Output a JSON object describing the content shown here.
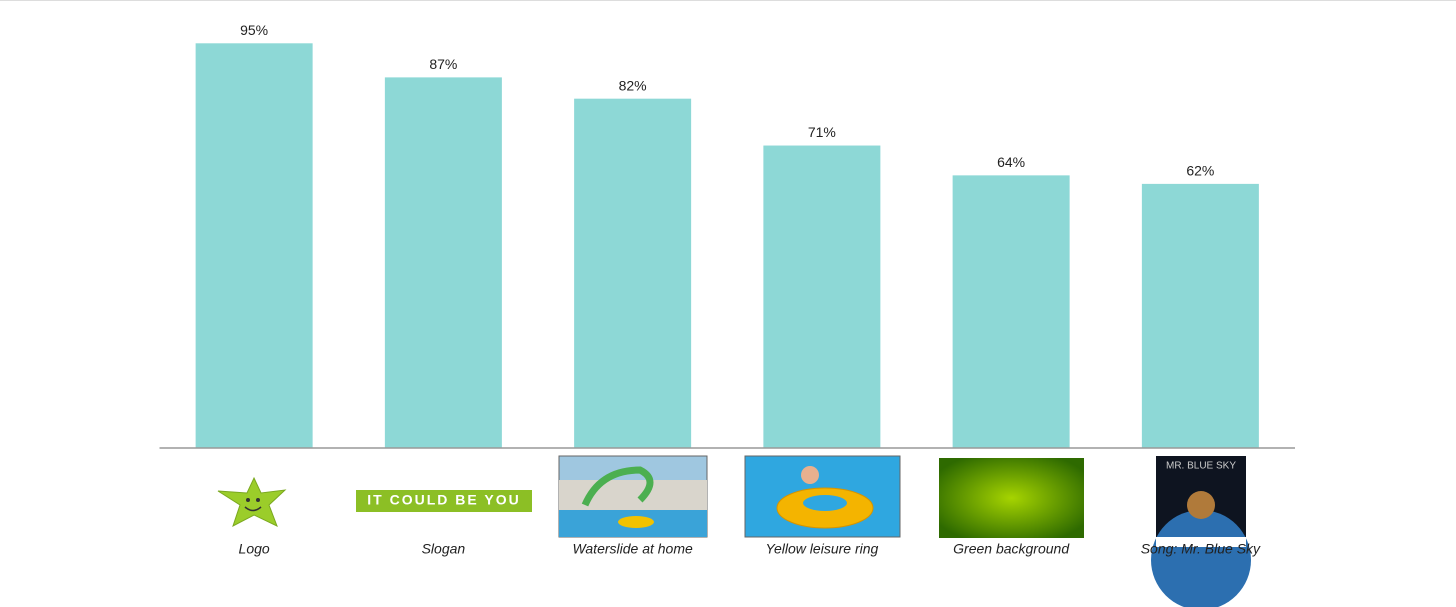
{
  "chart_data": {
    "type": "bar",
    "categories": [
      "Logo",
      "Slogan",
      "Waterslide at home",
      "Yellow leisure ring",
      "Green background",
      "Song: Mr. Blue Sky"
    ],
    "values": [
      95,
      87,
      82,
      71,
      64,
      62
    ],
    "value_labels": [
      "95%",
      "87%",
      "82%",
      "71%",
      "64%",
      "62%"
    ],
    "color": "#8dd8d6",
    "ylim": [
      0,
      100
    ],
    "annotations": [
      "IT COULD BE YOU",
      "MR. BLUE SKY"
    ]
  }
}
